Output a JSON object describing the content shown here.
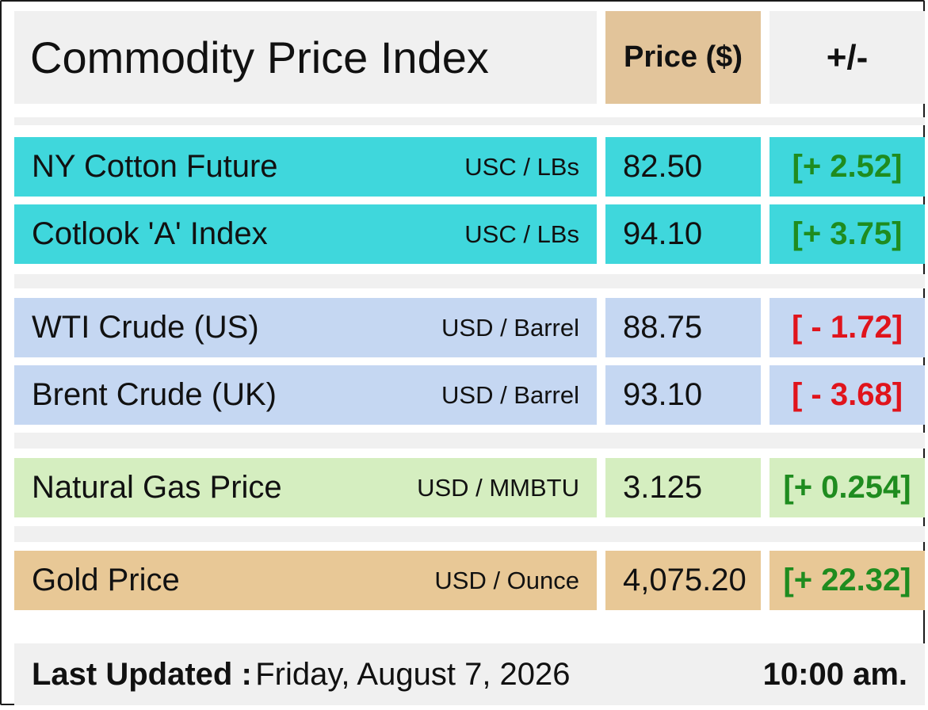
{
  "header": {
    "title": "Commodity Price Index",
    "price_label": "Price ($)",
    "change_label": "+/-"
  },
  "colors": {
    "cotton": "#3fd7dc",
    "crude": "#c5d7f2",
    "gas": "#d5eec0",
    "gold": "#e8c896",
    "up": "#1f8c1f",
    "down": "#e0141c"
  },
  "rows": [
    {
      "name": "NY Cotton Future",
      "unit": "USC / LBs",
      "price": "82.50",
      "change": "[+ 2.52]",
      "direction": "up",
      "group": "cotton"
    },
    {
      "name": "Cotlook 'A' Index",
      "unit": "USC / LBs",
      "price": "94.10",
      "change": "[+ 3.75]",
      "direction": "up",
      "group": "cotton"
    },
    {
      "name": "WTI Crude (US)",
      "unit": "USD / Barrel",
      "price": "88.75",
      "change": "[ - 1.72]",
      "direction": "down",
      "group": "crude"
    },
    {
      "name": "Brent Crude (UK)",
      "unit": "USD / Barrel",
      "price": "93.10",
      "change": "[ - 3.68]",
      "direction": "down",
      "group": "crude"
    },
    {
      "name": "Natural Gas Price",
      "unit": "USD / MMBTU",
      "price": "3.125",
      "change": "[+ 0.254]",
      "direction": "up",
      "group": "gas"
    },
    {
      "name": "Gold Price",
      "unit": "USD / Ounce",
      "price": "4,075.20",
      "change": "[+ 22.32]",
      "direction": "up",
      "group": "gold"
    }
  ],
  "footer": {
    "label": "Last Updated :",
    "date": "Friday, August 7, 2026",
    "time": "10:00 am."
  }
}
